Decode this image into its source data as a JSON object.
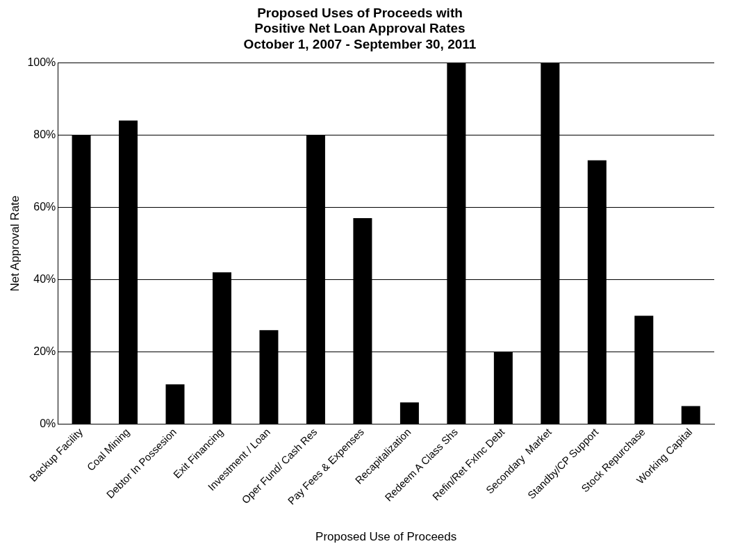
{
  "chart_data": {
    "type": "bar",
    "title": [
      "Proposed Uses of Proceeds with",
      "Positive Net Loan Approval Rates",
      "October 1, 2007 - September 30, 2011"
    ],
    "xlabel": "Proposed Use of Proceeds",
    "ylabel": "Net Approval Rate",
    "categories": [
      "Backup Facility",
      "Coal Mining",
      "Debtor In Possesion",
      "Exit Financing",
      "Investment / Loan",
      "Oper Fund/ Cash Res",
      "Pay Fees & Expenses",
      "Recapitalization",
      "Redeem A Class Shs",
      "Refin/Ret FxInc Debt",
      "Secondary  Market",
      "Standby/CP Support",
      "Stock Repurchase",
      "Working Capital"
    ],
    "values": [
      80,
      84,
      11,
      42,
      26,
      80,
      57,
      6,
      100,
      20,
      100,
      73,
      30,
      5
    ],
    "color": "#000000",
    "ylim": [
      0,
      100
    ],
    "yticks": [
      {
        "value": 0,
        "label": "0%"
      },
      {
        "value": 20,
        "label": "20%"
      },
      {
        "value": 40,
        "label": "40%"
      },
      {
        "value": 60,
        "label": "60%"
      },
      {
        "value": 80,
        "label": "80%"
      },
      {
        "value": 100,
        "label": "100%"
      }
    ],
    "grid": "y",
    "legend": false
  }
}
